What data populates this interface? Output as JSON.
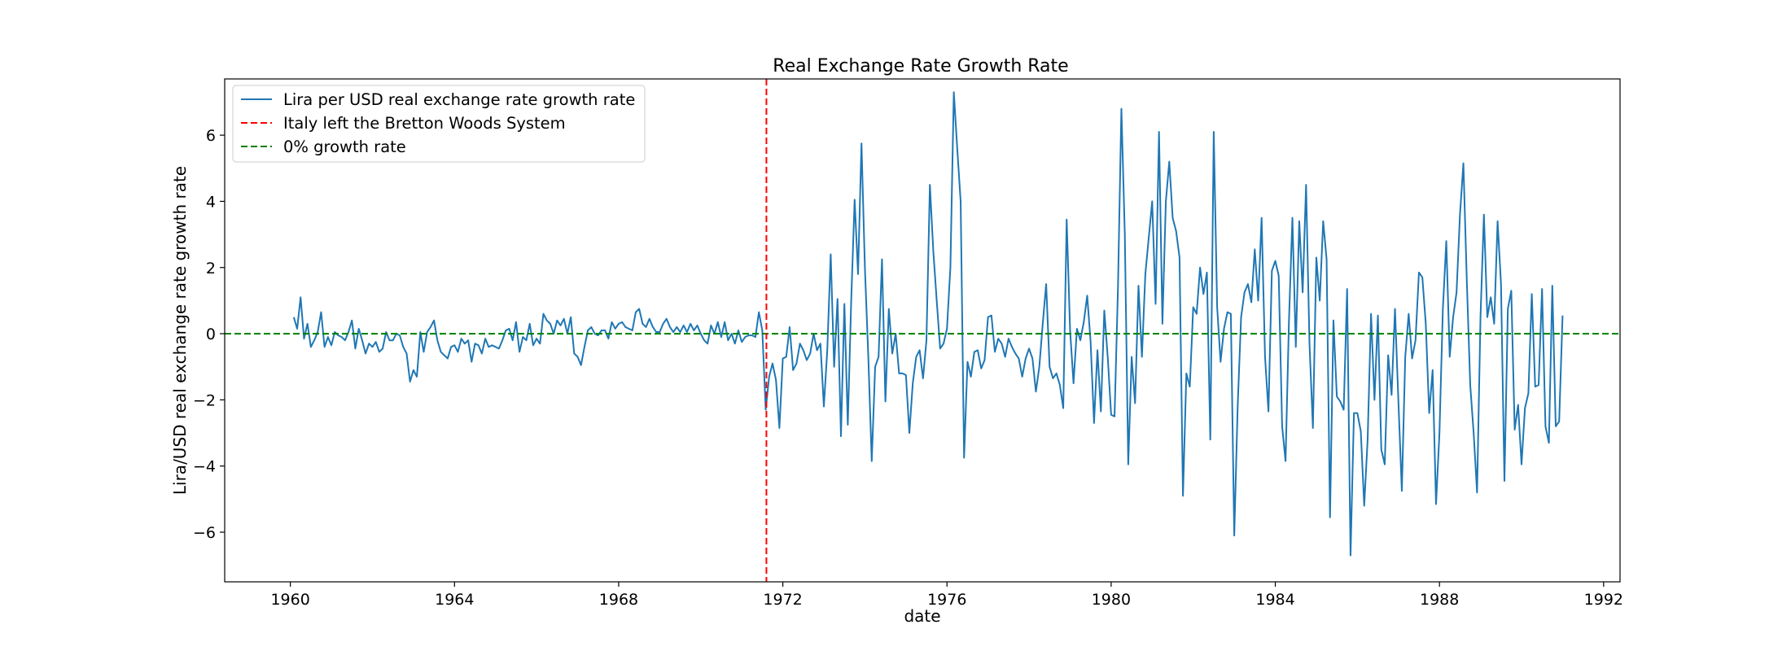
{
  "chart_data": {
    "type": "line",
    "title": "Real Exchange Rate Growth Rate",
    "xlabel": "date",
    "ylabel": "Lira/USD real exchange rate growth rate",
    "xlim": [
      1958.4,
      1992.4
    ],
    "ylim": [
      -7.5,
      7.7
    ],
    "x_ticks": [
      1960,
      1964,
      1968,
      1972,
      1976,
      1980,
      1984,
      1988,
      1992
    ],
    "y_ticks": [
      -6,
      -4,
      -2,
      0,
      2,
      4,
      6
    ],
    "grid": false,
    "legend_position": "top-left",
    "series": [
      {
        "name": "Lira per USD real exchange rate growth rate",
        "color": "#1f77b4",
        "style": "solid",
        "start_year": 1960.083,
        "step_years": 0.0833333,
        "values": [
          0.5,
          0.15,
          1.1,
          -0.15,
          0.3,
          -0.4,
          -0.2,
          0.05,
          0.65,
          -0.4,
          -0.1,
          -0.35,
          0.05,
          -0.05,
          -0.1,
          -0.2,
          0.05,
          0.4,
          -0.45,
          0.15,
          -0.2,
          -0.6,
          -0.3,
          -0.4,
          -0.25,
          -0.55,
          -0.45,
          0.05,
          -0.2,
          -0.2,
          0.0,
          -0.05,
          -0.4,
          -0.6,
          -1.45,
          -1.1,
          -1.3,
          0.05,
          -0.55,
          0.05,
          0.2,
          0.4,
          -0.2,
          -0.55,
          -0.65,
          -0.75,
          -0.4,
          -0.35,
          -0.55,
          -0.15,
          -0.3,
          -0.2,
          -0.85,
          -0.3,
          -0.35,
          -0.6,
          -0.15,
          -0.4,
          -0.35,
          -0.4,
          -0.45,
          -0.2,
          0.1,
          0.15,
          -0.2,
          0.35,
          -0.55,
          -0.1,
          -0.2,
          0.3,
          -0.35,
          -0.15,
          -0.3,
          0.6,
          0.4,
          0.3,
          0.0,
          0.4,
          0.25,
          0.45,
          0.0,
          0.5,
          -0.6,
          -0.7,
          -0.95,
          -0.4,
          0.1,
          0.2,
          0.0,
          -0.05,
          0.1,
          0.1,
          -0.15,
          0.35,
          0.15,
          0.3,
          0.35,
          0.2,
          0.15,
          0.1,
          0.65,
          0.75,
          0.3,
          0.2,
          0.45,
          0.2,
          0.05,
          0.05,
          0.3,
          0.45,
          0.2,
          0.05,
          0.2,
          0.05,
          0.25,
          0.05,
          0.3,
          0.1,
          0.25,
          0.0,
          -0.2,
          -0.3,
          0.25,
          0.0,
          0.35,
          -0.1,
          0.35,
          -0.2,
          0.0,
          -0.3,
          0.1,
          -0.25,
          -0.1,
          -0.05,
          -0.05,
          -0.1,
          0.65,
          0.1,
          -2.3,
          -1.3,
          -0.9,
          -1.4,
          -2.85,
          -0.75,
          -0.7,
          0.2,
          -1.1,
          -0.9,
          -0.3,
          -0.5,
          -0.8,
          -0.6,
          0.0,
          -0.5,
          -0.3,
          -2.2,
          -0.5,
          2.4,
          -1.0,
          1.05,
          -3.1,
          0.9,
          -2.75,
          1.0,
          4.05,
          1.8,
          5.75,
          2.0,
          -0.7,
          -3.85,
          -1.0,
          -0.7,
          2.25,
          -2.05,
          0.75,
          -0.6,
          0.0,
          -1.2,
          -1.2,
          -1.25,
          -3.0,
          -1.5,
          -0.7,
          -0.5,
          -1.35,
          -0.2,
          4.5,
          2.5,
          1.0,
          -0.45,
          -0.3,
          0.15,
          2.0,
          7.3,
          5.6,
          4.0,
          -3.75,
          -0.85,
          -1.3,
          -0.55,
          -0.5,
          -1.05,
          -0.8,
          0.5,
          0.55,
          -0.55,
          -0.15,
          -0.3,
          -0.7,
          -0.15,
          -0.4,
          -0.6,
          -0.75,
          -1.3,
          -0.75,
          -0.45,
          -0.75,
          -1.75,
          -1.0,
          0.3,
          1.5,
          -1.0,
          -1.35,
          -1.2,
          -1.55,
          -2.25,
          3.45,
          0.1,
          -1.5,
          0.15,
          -0.2,
          0.35,
          1.15,
          -0.25,
          -2.7,
          -0.5,
          -2.35,
          0.7,
          -0.7,
          -2.45,
          -2.5,
          1.4,
          6.8,
          3.0,
          -3.95,
          -0.7,
          -2.1,
          1.45,
          -0.7,
          1.8,
          2.9,
          4.0,
          0.9,
          6.1,
          0.3,
          4.0,
          5.2,
          3.5,
          3.1,
          2.3,
          -4.9,
          -1.2,
          -1.6,
          0.8,
          0.6,
          2.0,
          1.2,
          1.85,
          -3.2,
          6.1,
          0.8,
          -0.85,
          0.15,
          0.65,
          0.6,
          -6.1,
          -2.2,
          0.5,
          1.25,
          1.5,
          0.95,
          2.55,
          1.0,
          3.5,
          -0.7,
          -2.35,
          1.9,
          2.2,
          1.75,
          -2.8,
          -3.85,
          0.4,
          3.5,
          -0.4,
          3.4,
          1.25,
          4.5,
          -0.3,
          -2.85,
          2.3,
          1.0,
          3.4,
          2.25,
          -5.55,
          0.4,
          -1.9,
          -2.05,
          -2.3,
          1.35,
          -6.7,
          -2.4,
          -2.4,
          -2.95,
          -5.2,
          -3.2,
          0.6,
          -2.0,
          0.55,
          -3.5,
          -3.95,
          -0.65,
          -1.85,
          0.75,
          -2.05,
          -4.75,
          -0.7,
          0.6,
          -0.75,
          -0.2,
          1.85,
          1.7,
          0.3,
          -2.4,
          -1.1,
          -5.15,
          -3.0,
          0.75,
          2.8,
          -0.7,
          0.5,
          1.25,
          3.6,
          5.15,
          1.6,
          -1.55,
          -3.0,
          -4.8,
          0.5,
          3.6,
          0.5,
          1.1,
          0.3,
          3.4,
          1.5,
          -4.45,
          0.75,
          1.3,
          -2.9,
          -2.15,
          -3.95,
          -2.25,
          -1.8,
          1.2,
          -1.6,
          -1.55,
          1.35,
          -2.8,
          -3.3,
          1.45,
          -2.8,
          -2.65,
          0.55
        ]
      },
      {
        "name": "Italy left the Bretton Woods System",
        "color": "#ff0000",
        "style": "dashed",
        "orientation": "vertical",
        "x_value": 1971.6
      },
      {
        "name": "0% growth rate",
        "color": "#008000",
        "style": "dashed",
        "orientation": "horizontal",
        "y_value": 0
      }
    ]
  }
}
